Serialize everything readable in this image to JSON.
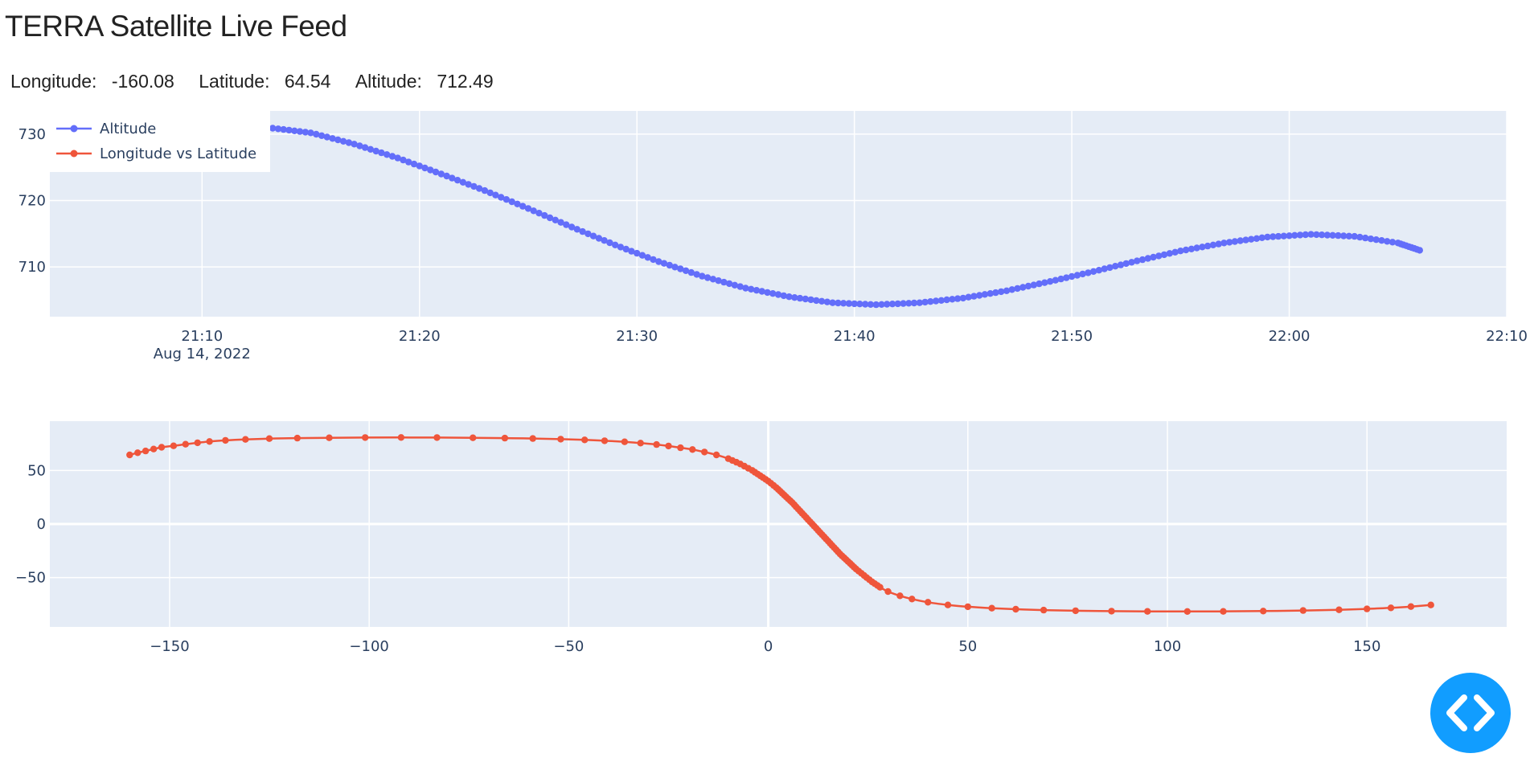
{
  "title": "TERRA Satellite Live Feed",
  "readout": {
    "longitude_label": "Longitude:",
    "longitude": "-160.08",
    "latitude_label": "Latitude:",
    "latitude": "64.54",
    "altitude_label": "Altitude:",
    "altitude": "712.49"
  },
  "debug_button": {
    "icon": "code-brackets-icon",
    "color": "#119dff"
  },
  "colors": {
    "plot_bg": "#e5ecf6",
    "grid": "#ffffff",
    "altitude": "#636efa",
    "track": "#ef553b"
  },
  "chart_data": [
    {
      "type": "line",
      "mode": "lines+markers",
      "x_type": "time",
      "x_range": [
        "2022-08-14 21:03",
        "2022-08-14 22:10"
      ],
      "x_ticks": [
        {
          "value": "2022-08-14 21:10",
          "label": "21:10",
          "sublabel": "Aug 14, 2022"
        },
        {
          "value": "2022-08-14 21:20",
          "label": "21:20"
        },
        {
          "value": "2022-08-14 21:30",
          "label": "21:30"
        },
        {
          "value": "2022-08-14 21:40",
          "label": "21:40"
        },
        {
          "value": "2022-08-14 21:50",
          "label": "21:50"
        },
        {
          "value": "2022-08-14 22:00",
          "label": "22:00"
        },
        {
          "value": "2022-08-14 22:10",
          "label": "22:10"
        }
      ],
      "ylim": [
        702.5,
        733.5
      ],
      "y_ticks": [
        710,
        720,
        730
      ],
      "legend": {
        "placement": "top-left",
        "entries": [
          {
            "name": "Altitude",
            "color": "#636efa"
          },
          {
            "name": "Longitude vs Latitude",
            "color": "#ef553b"
          }
        ]
      },
      "series": [
        {
          "name": "Altitude",
          "color": "#636efa",
          "x": [
            "2022-08-14 21:13",
            "2022-08-14 21:15",
            "2022-08-14 21:17",
            "2022-08-14 21:19",
            "2022-08-14 21:21",
            "2022-08-14 21:23",
            "2022-08-14 21:25",
            "2022-08-14 21:27",
            "2022-08-14 21:29",
            "2022-08-14 21:31",
            "2022-08-14 21:33",
            "2022-08-14 21:35",
            "2022-08-14 21:37",
            "2022-08-14 21:39",
            "2022-08-14 21:41",
            "2022-08-14 21:43",
            "2022-08-14 21:45",
            "2022-08-14 21:47",
            "2022-08-14 21:49",
            "2022-08-14 21:51",
            "2022-08-14 21:53",
            "2022-08-14 21:55",
            "2022-08-14 21:57",
            "2022-08-14 21:59",
            "2022-08-14 22:01",
            "2022-08-14 22:03",
            "2022-08-14 22:05",
            "2022-08-14 22:06"
          ],
          "y": [
            731.0,
            730.2,
            728.5,
            726.4,
            724.0,
            721.5,
            718.8,
            716.0,
            713.3,
            710.8,
            708.6,
            706.8,
            705.5,
            704.6,
            704.3,
            704.6,
            705.3,
            706.4,
            707.8,
            709.3,
            710.9,
            712.4,
            713.6,
            714.5,
            714.9,
            714.6,
            713.6,
            712.5
          ]
        }
      ]
    },
    {
      "type": "line",
      "mode": "lines+markers",
      "xlim": [
        -180,
        185
      ],
      "x_ticks": [
        -150,
        -100,
        -50,
        0,
        50,
        100,
        150
      ],
      "ylim": [
        -96,
        96
      ],
      "y_ticks": [
        -50,
        0,
        50
      ],
      "series": [
        {
          "name": "Longitude vs Latitude",
          "color": "#ef553b",
          "x": [
            -160,
            -158,
            -156,
            -154,
            -152,
            -149,
            -146,
            -143,
            -140,
            -136,
            -131,
            -125,
            -118,
            -110,
            -101,
            -92,
            -83,
            -74,
            -66,
            -59,
            -52,
            -46,
            -41,
            -36,
            -32,
            -28,
            -25,
            -22,
            -19,
            -16,
            -13,
            -10,
            -7,
            -4,
            -2,
            0,
            2,
            4,
            6,
            8,
            10,
            12,
            14,
            16,
            18,
            20,
            22,
            24,
            26,
            28,
            30,
            33,
            36,
            40,
            45,
            50,
            56,
            62,
            69,
            77,
            86,
            95,
            105,
            114,
            124,
            134,
            143,
            150,
            156,
            161,
            166
          ],
          "y": [
            64.5,
            66.5,
            68.2,
            70.0,
            71.6,
            73.0,
            74.5,
            75.8,
            77.0,
            78.1,
            79.0,
            79.7,
            80.2,
            80.5,
            80.7,
            80.8,
            80.7,
            80.5,
            80.2,
            79.8,
            79.2,
            78.5,
            77.7,
            76.7,
            75.5,
            74.2,
            72.8,
            71.2,
            69.5,
            67.2,
            64.5,
            61.0,
            56.0,
            50.0,
            45.0,
            40.0,
            34.0,
            27.0,
            20.0,
            12.0,
            4.0,
            -4.0,
            -12.0,
            -20.0,
            -28.0,
            -35.0,
            -42.0,
            -48.0,
            -54.0,
            -59.0,
            -63.0,
            -67.0,
            -70.0,
            -73.0,
            -75.5,
            -77.2,
            -78.5,
            -79.5,
            -80.3,
            -80.9,
            -81.3,
            -81.5,
            -81.6,
            -81.5,
            -81.2,
            -80.7,
            -80.0,
            -79.2,
            -78.2,
            -77.0,
            -75.5
          ]
        }
      ]
    }
  ]
}
